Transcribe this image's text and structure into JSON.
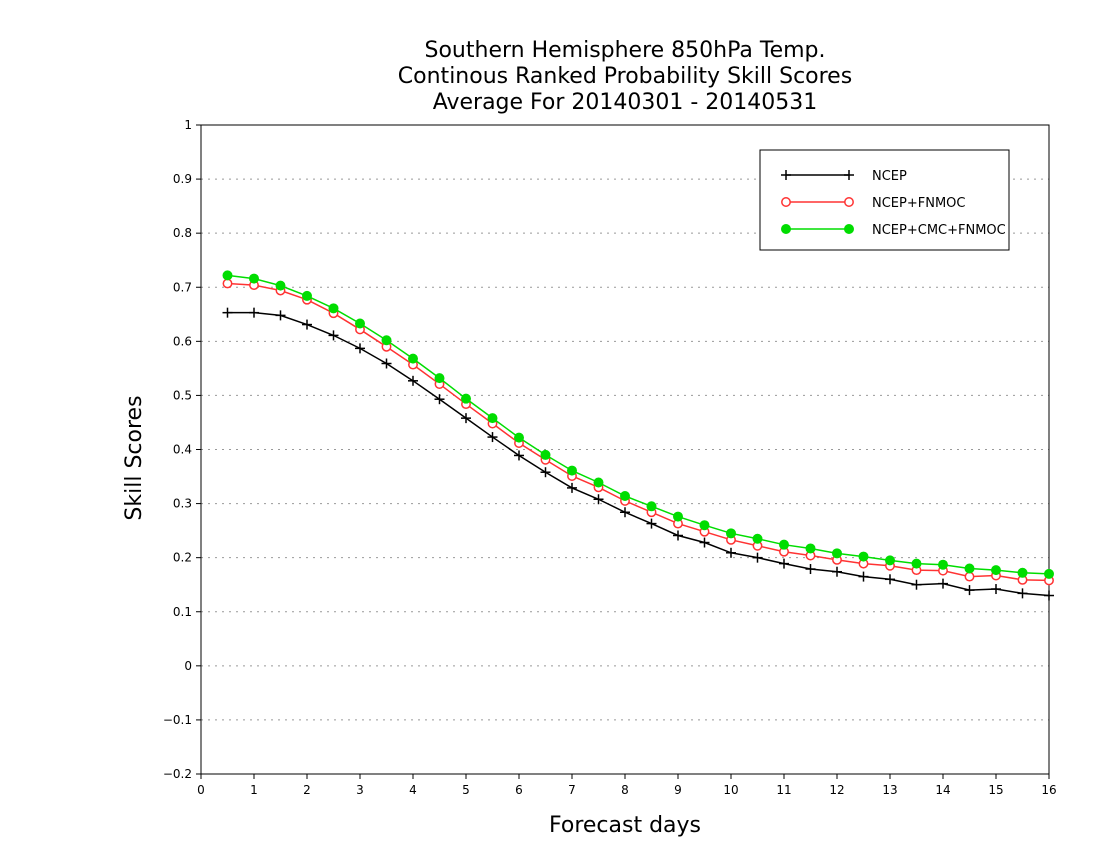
{
  "chart_data": {
    "type": "line",
    "title": [
      "Southern Hemisphere 850hPa Temp.",
      "Continous Ranked Probability Skill Scores",
      "Average For 20140301 - 20140531"
    ],
    "xlabel": "Forecast days",
    "ylabel": "Skill Scores",
    "xlim": [
      0,
      16
    ],
    "ylim": [
      -0.2,
      1.0
    ],
    "xticks": [
      0,
      1,
      2,
      3,
      4,
      5,
      6,
      7,
      8,
      9,
      10,
      11,
      12,
      13,
      14,
      15,
      16
    ],
    "xtick_labels": [
      "0",
      "1",
      "2",
      "3",
      "4",
      "5",
      "6",
      "7",
      "8",
      "9",
      "10",
      "11",
      "12",
      "13",
      "14",
      "15",
      "16"
    ],
    "yticks": [
      -0.2,
      -0.1,
      0,
      0.1,
      0.2,
      0.3,
      0.4,
      0.5,
      0.6,
      0.7,
      0.8,
      0.9,
      1.0
    ],
    "ytick_labels": [
      "−0.2",
      "−0.1",
      "0",
      "0.1",
      "0.2",
      "0.3",
      "0.4",
      "0.5",
      "0.6",
      "0.7",
      "0.8",
      "0.9",
      "1"
    ],
    "grid": "horizontal dotted",
    "legend_position": "top-right",
    "x": [
      0.5,
      1,
      1.5,
      2,
      2.5,
      3,
      3.5,
      4,
      4.5,
      5,
      5.5,
      6,
      6.5,
      7,
      7.5,
      8,
      8.5,
      9,
      9.5,
      10,
      10.5,
      11,
      11.5,
      12,
      12.5,
      13,
      13.5,
      14,
      14.5,
      15,
      15.5,
      16
    ],
    "series": [
      {
        "name": "NCEP",
        "color": "#000000",
        "marker": "plus",
        "values": [
          0.653,
          0.653,
          0.648,
          0.631,
          0.611,
          0.587,
          0.559,
          0.527,
          0.493,
          0.458,
          0.423,
          0.389,
          0.358,
          0.329,
          0.308,
          0.284,
          0.263,
          0.241,
          0.228,
          0.209,
          0.2,
          0.189,
          0.179,
          0.174,
          0.165,
          0.16,
          0.15,
          0.152,
          0.14,
          0.142,
          0.134,
          0.13
        ]
      },
      {
        "name": "NCEP+FNMOC",
        "color": "#ff3333",
        "marker": "open-circle",
        "values": [
          0.707,
          0.704,
          0.694,
          0.677,
          0.652,
          0.622,
          0.59,
          0.557,
          0.521,
          0.484,
          0.448,
          0.412,
          0.381,
          0.351,
          0.33,
          0.305,
          0.284,
          0.263,
          0.248,
          0.233,
          0.222,
          0.211,
          0.204,
          0.196,
          0.189,
          0.185,
          0.177,
          0.176,
          0.165,
          0.167,
          0.159,
          0.158
        ]
      },
      {
        "name": "NCEP+CMC+FNMOC",
        "color": "#00dd00",
        "marker": "filled-circle",
        "values": [
          0.722,
          0.716,
          0.703,
          0.684,
          0.661,
          0.633,
          0.602,
          0.568,
          0.532,
          0.494,
          0.458,
          0.422,
          0.39,
          0.361,
          0.339,
          0.314,
          0.295,
          0.276,
          0.26,
          0.245,
          0.235,
          0.224,
          0.217,
          0.208,
          0.202,
          0.195,
          0.189,
          0.187,
          0.18,
          0.177,
          0.172,
          0.17
        ]
      }
    ]
  }
}
